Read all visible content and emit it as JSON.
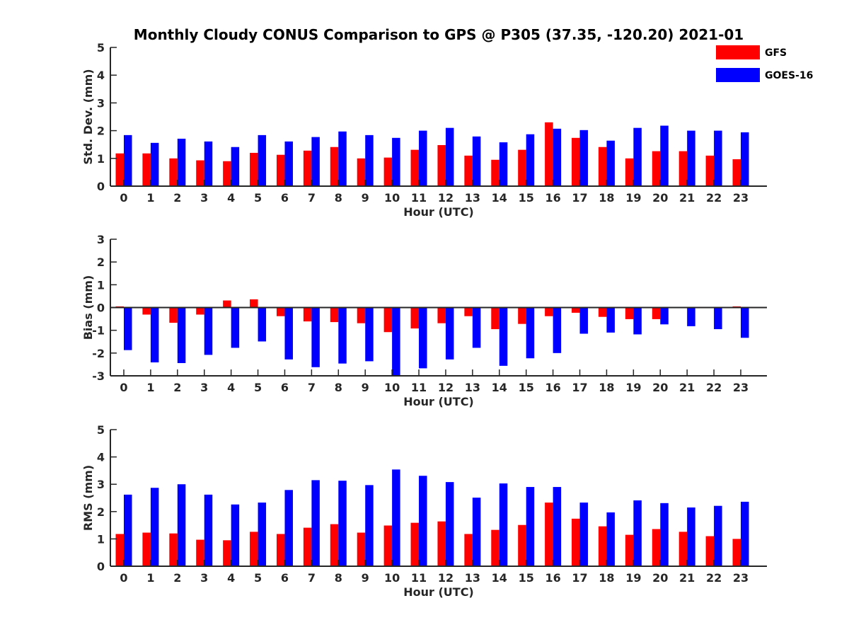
{
  "title": "Monthly Cloudy CONUS Comparison to GPS @ P305 (37.35, -120.20) 2021-01",
  "legend": {
    "placement": "top-right",
    "entries": [
      {
        "name": "GFS",
        "color": "#ff0000"
      },
      {
        "name": "GOES-16",
        "color": "#0000ff"
      }
    ]
  },
  "chart_data": [
    {
      "type": "bar",
      "id": "std",
      "xlabel": "Hour (UTC)",
      "ylabel": "Std. Dev. (mm)",
      "ylim": [
        0,
        5
      ],
      "yticks": [
        0,
        1,
        2,
        3,
        4,
        5
      ],
      "categories": [
        "0",
        "1",
        "2",
        "3",
        "4",
        "5",
        "6",
        "7",
        "8",
        "9",
        "10",
        "11",
        "12",
        "13",
        "14",
        "15",
        "16",
        "17",
        "18",
        "19",
        "20",
        "21",
        "22",
        "23"
      ],
      "series": [
        {
          "name": "GFS",
          "color": "#ff0000",
          "values": [
            1.18,
            1.18,
            1.0,
            0.93,
            0.9,
            1.2,
            1.13,
            1.28,
            1.41,
            1.0,
            1.03,
            1.31,
            1.48,
            1.1,
            0.95,
            1.31,
            2.3,
            1.74,
            1.41,
            1.0,
            1.26,
            1.26,
            1.1,
            0.97
          ]
        },
        {
          "name": "GOES-16",
          "color": "#0000ff",
          "values": [
            1.84,
            1.56,
            1.71,
            1.61,
            1.41,
            1.84,
            1.61,
            1.77,
            1.97,
            1.84,
            1.74,
            2.0,
            2.1,
            1.79,
            1.58,
            1.87,
            2.07,
            2.02,
            1.64,
            2.1,
            2.18,
            2.0,
            2.0,
            1.94
          ]
        }
      ]
    },
    {
      "type": "bar",
      "id": "bias",
      "xlabel": "Hour (UTC)",
      "ylabel": "Bias (mm)",
      "ylim": [
        -3,
        3
      ],
      "yticks": [
        -3,
        -2,
        -1,
        0,
        1,
        2,
        3
      ],
      "categories": [
        "0",
        "1",
        "2",
        "3",
        "4",
        "5",
        "6",
        "7",
        "8",
        "9",
        "10",
        "11",
        "12",
        "13",
        "14",
        "15",
        "16",
        "17",
        "18",
        "19",
        "20",
        "21",
        "22",
        "23"
      ],
      "series": [
        {
          "name": "GFS",
          "color": "#ff0000",
          "values": [
            0.05,
            -0.31,
            -0.67,
            -0.31,
            0.31,
            0.36,
            -0.38,
            -0.61,
            -0.64,
            -0.69,
            -1.08,
            -0.92,
            -0.69,
            -0.38,
            -0.95,
            -0.72,
            -0.38,
            -0.23,
            -0.41,
            -0.51,
            -0.51,
            0.0,
            -0.03,
            0.05
          ]
        },
        {
          "name": "GOES-16",
          "color": "#0000ff",
          "values": [
            -1.87,
            -2.41,
            -2.44,
            -2.08,
            -1.77,
            -1.49,
            -2.28,
            -2.62,
            -2.46,
            -2.36,
            -3.0,
            -2.67,
            -2.28,
            -1.77,
            -2.56,
            -2.23,
            -2.0,
            -1.15,
            -1.1,
            -1.18,
            -0.74,
            -0.82,
            -0.95,
            -1.33
          ]
        }
      ]
    },
    {
      "type": "bar",
      "id": "rms",
      "xlabel": "Hour (UTC)",
      "ylabel": "RMS (mm)",
      "ylim": [
        0,
        5
      ],
      "yticks": [
        0,
        1,
        2,
        3,
        4,
        5
      ],
      "categories": [
        "0",
        "1",
        "2",
        "3",
        "4",
        "5",
        "6",
        "7",
        "8",
        "9",
        "10",
        "11",
        "12",
        "13",
        "14",
        "15",
        "16",
        "17",
        "18",
        "19",
        "20",
        "21",
        "22",
        "23"
      ],
      "series": [
        {
          "name": "GFS",
          "color": "#ff0000",
          "values": [
            1.18,
            1.23,
            1.2,
            0.97,
            0.95,
            1.26,
            1.18,
            1.41,
            1.54,
            1.23,
            1.49,
            1.59,
            1.64,
            1.18,
            1.33,
            1.51,
            2.33,
            1.74,
            1.46,
            1.15,
            1.36,
            1.26,
            1.1,
            1.0
          ]
        },
        {
          "name": "GOES-16",
          "color": "#0000ff",
          "values": [
            2.62,
            2.87,
            3.0,
            2.62,
            2.26,
            2.33,
            2.79,
            3.15,
            3.13,
            2.97,
            3.54,
            3.31,
            3.08,
            2.51,
            3.03,
            2.9,
            2.9,
            2.33,
            1.97,
            2.41,
            2.31,
            2.15,
            2.21,
            2.36
          ]
        }
      ]
    }
  ]
}
